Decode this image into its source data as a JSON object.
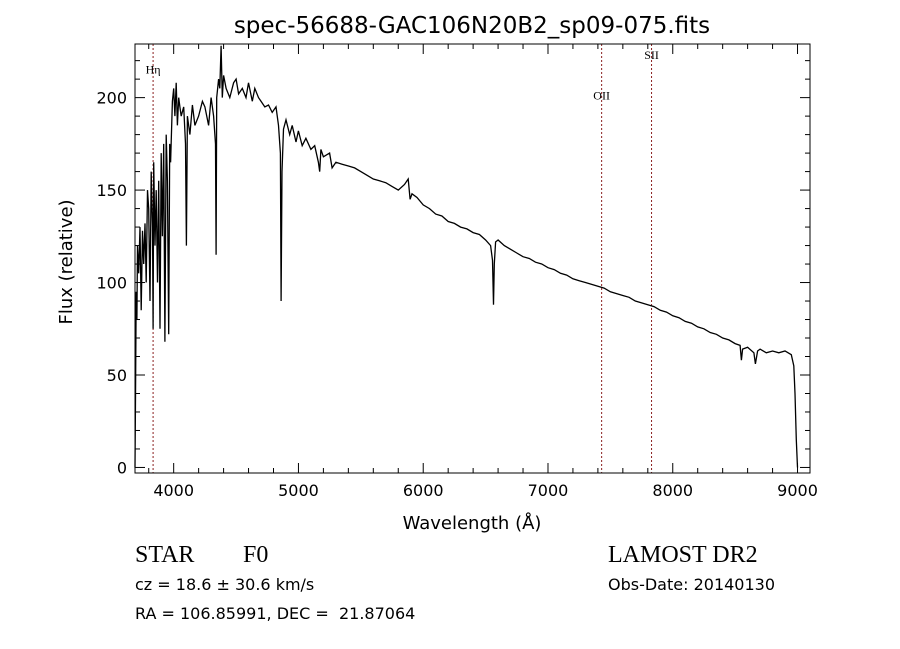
{
  "chart_data": {
    "type": "line",
    "title": "spec-56688-GAC106N20B2_sp09-075.fits",
    "xlabel": "Wavelength (Å)",
    "ylabel": "Flux (relative)",
    "xlim": [
      3690,
      9100
    ],
    "ylim": [
      -3,
      229
    ],
    "xticks": [
      4000,
      5000,
      6000,
      7000,
      8000,
      9000
    ],
    "yticks": [
      0,
      50,
      100,
      150,
      200
    ],
    "grid": false,
    "line_color": "#000000",
    "marker_color": "#8b2020",
    "line_markers": [
      {
        "label": "Hη",
        "wavelength": 3835,
        "label_flux": 213
      },
      {
        "label": "OII",
        "wavelength": 7430,
        "label_flux": 199
      },
      {
        "label": "SII",
        "wavelength": 7830,
        "label_flux": 221
      }
    ],
    "series": [
      {
        "name": "spectrum",
        "x": [
          3690,
          3695,
          3700,
          3705,
          3710,
          3720,
          3730,
          3740,
          3750,
          3760,
          3770,
          3780,
          3790,
          3800,
          3810,
          3820,
          3830,
          3835,
          3840,
          3850,
          3860,
          3870,
          3880,
          3890,
          3900,
          3910,
          3920,
          3930,
          3940,
          3950,
          3960,
          3968,
          3975,
          3990,
          4000,
          4010,
          4020,
          4030,
          4040,
          4050,
          4060,
          4080,
          4095,
          4102,
          4110,
          4130,
          4150,
          4170,
          4200,
          4230,
          4250,
          4280,
          4300,
          4320,
          4335,
          4340,
          4345,
          4360,
          4370,
          4380,
          4390,
          4400,
          4420,
          4450,
          4480,
          4500,
          4520,
          4550,
          4580,
          4600,
          4630,
          4650,
          4680,
          4700,
          4730,
          4760,
          4790,
          4820,
          4840,
          4855,
          4861,
          4868,
          4880,
          4900,
          4930,
          4950,
          4980,
          5000,
          5030,
          5060,
          5100,
          5130,
          5160,
          5170,
          5180,
          5200,
          5250,
          5270,
          5300,
          5350,
          5400,
          5450,
          5500,
          5550,
          5600,
          5650,
          5700,
          5750,
          5800,
          5850,
          5880,
          5895,
          5910,
          5950,
          6000,
          6050,
          6100,
          6150,
          6200,
          6250,
          6300,
          6350,
          6400,
          6450,
          6500,
          6540,
          6555,
          6563,
          6570,
          6580,
          6600,
          6650,
          6700,
          6750,
          6800,
          6850,
          6900,
          6950,
          7000,
          7050,
          7100,
          7150,
          7200,
          7250,
          7300,
          7350,
          7400,
          7450,
          7500,
          7550,
          7600,
          7650,
          7700,
          7750,
          7800,
          7850,
          7900,
          7950,
          8000,
          8050,
          8100,
          8150,
          8200,
          8250,
          8300,
          8350,
          8400,
          8450,
          8500,
          8540,
          8550,
          8560,
          8600,
          8650,
          8662,
          8680,
          8700,
          8750,
          8800,
          8850,
          8900,
          8950,
          8970,
          8980,
          8990,
          9000
        ],
        "y": [
          0,
          45,
          95,
          80,
          120,
          105,
          130,
          85,
          128,
          110,
          132,
          100,
          150,
          140,
          90,
          160,
          130,
          75,
          165,
          120,
          150,
          100,
          155,
          75,
          170,
          125,
          175,
          68,
          180,
          155,
          72,
          175,
          165,
          198,
          205,
          190,
          208,
          185,
          200,
          195,
          190,
          195,
          175,
          120,
          190,
          180,
          196,
          185,
          190,
          198,
          195,
          185,
          200,
          190,
          175,
          115,
          200,
          210,
          205,
          228,
          200,
          212,
          205,
          200,
          208,
          210,
          202,
          205,
          200,
          208,
          198,
          205,
          200,
          198,
          195,
          196,
          192,
          195,
          185,
          170,
          90,
          160,
          183,
          188,
          180,
          185,
          176,
          182,
          174,
          178,
          172,
          174,
          165,
          160,
          172,
          168,
          170,
          162,
          165,
          164,
          163,
          162,
          160,
          158,
          156,
          155,
          154,
          152,
          150,
          153,
          156,
          145,
          148,
          146,
          142,
          140,
          137,
          136,
          133,
          132,
          130,
          129,
          127,
          126,
          123,
          120,
          112,
          88,
          110,
          122,
          123,
          120,
          118,
          116,
          114,
          113,
          111,
          110,
          108,
          107,
          105,
          104,
          102,
          101,
          100,
          99,
          98,
          97,
          95,
          94,
          93,
          92,
          90,
          89,
          88,
          87,
          85,
          84,
          82,
          81,
          79,
          78,
          76,
          75,
          73,
          72,
          70,
          69,
          67,
          66,
          58,
          64,
          65,
          62,
          56,
          63,
          64,
          62,
          63,
          62,
          63,
          61,
          55,
          40,
          15,
          0
        ]
      }
    ]
  },
  "footer": {
    "object_class": "STAR",
    "subclass": "F0",
    "survey": "LAMOST DR2",
    "redshift": "cz = 18.6 ± 30.6 km/s",
    "obs_date": "Obs-Date: 20140130",
    "coords": "RA = 106.85991, DEC =  21.87064"
  }
}
